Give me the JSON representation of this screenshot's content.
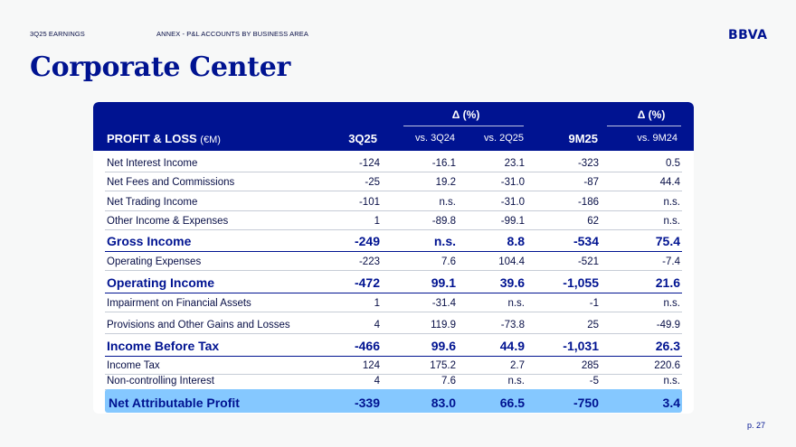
{
  "header": {
    "section": "3Q25 EARNINGS",
    "subsection": "ANNEX - P&L ACCOUNTS BY BUSINESS AREA",
    "logo": "BBVA"
  },
  "title": "Corporate Center",
  "table": {
    "delta_group_1": "Δ (%)",
    "delta_group_2": "Δ (%)",
    "col_label": "PROFIT & LOSS",
    "col_unit": "(€M)",
    "col_q": "3Q25",
    "col_vs_q": "vs. 3Q24",
    "col_vs_prev": "vs. 2Q25",
    "col_ytd": "9M25",
    "col_vs_ytd": "vs. 9M24",
    "rows": [
      {
        "label": "Net Interest Income",
        "q": "-124",
        "vs_q": "-16.1",
        "vs_prev": "23.1",
        "ytd": "-323",
        "vs_ytd": "0.5"
      },
      {
        "label": "Net Fees and Commissions",
        "q": "-25",
        "vs_q": "19.2",
        "vs_prev": "-31.0",
        "ytd": "-87",
        "vs_ytd": "44.4"
      },
      {
        "label": "Net Trading Income",
        "q": "-101",
        "vs_q": "n.s.",
        "vs_prev": "-31.0",
        "ytd": "-186",
        "vs_ytd": "n.s."
      },
      {
        "label": "Other Income & Expenses",
        "q": "1",
        "vs_q": "-89.8",
        "vs_prev": "-99.1",
        "ytd": "62",
        "vs_ytd": "n.s."
      },
      {
        "label": "Gross Income",
        "q": "-249",
        "vs_q": "n.s.",
        "vs_prev": "8.8",
        "ytd": "-534",
        "vs_ytd": "75.4"
      },
      {
        "label": "Operating Expenses",
        "q": "-223",
        "vs_q": "7.6",
        "vs_prev": "104.4",
        "ytd": "-521",
        "vs_ytd": "-7.4"
      },
      {
        "label": "Operating Income",
        "q": "-472",
        "vs_q": "99.1",
        "vs_prev": "39.6",
        "ytd": "-1,055",
        "vs_ytd": "21.6"
      },
      {
        "label": "Impairment on Financial Assets",
        "q": "1",
        "vs_q": "-31.4",
        "vs_prev": "n.s.",
        "ytd": "-1",
        "vs_ytd": "n.s."
      },
      {
        "label": "Provisions and Other Gains and Losses",
        "q": "4",
        "vs_q": "119.9",
        "vs_prev": "-73.8",
        "ytd": "25",
        "vs_ytd": "-49.9"
      },
      {
        "label": "Income Before Tax",
        "q": "-466",
        "vs_q": "99.6",
        "vs_prev": "44.9",
        "ytd": "-1,031",
        "vs_ytd": "26.3"
      },
      {
        "label": "Income Tax",
        "q": "124",
        "vs_q": "175.2",
        "vs_prev": "2.7",
        "ytd": "285",
        "vs_ytd": "220.6"
      },
      {
        "label": "Non-controlling Interest",
        "q": "4",
        "vs_q": "7.6",
        "vs_prev": "n.s.",
        "ytd": "-5",
        "vs_ytd": "n.s."
      },
      {
        "label": "Net Attributable Profit",
        "q": "-339",
        "vs_q": "83.0",
        "vs_prev": "66.5",
        "ytd": "-750",
        "vs_ytd": "3.4"
      }
    ]
  },
  "footer": {
    "page": "p. 27"
  },
  "colors": {
    "brand_blue": "#001391",
    "highlight": "#85c8ff",
    "text": "#070e46"
  }
}
